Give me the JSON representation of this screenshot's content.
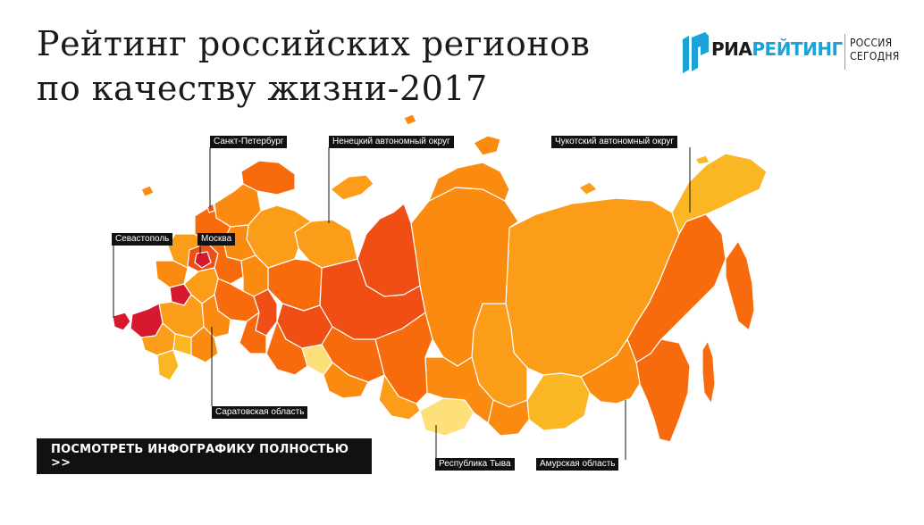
{
  "header": {
    "title_line1": "Рейтинг российских регионов",
    "title_line2": "по качеству жизни-2017"
  },
  "brand": {
    "ria_part1": "РИА",
    "ria_part2": "РЕЙТИНГ",
    "rs_line1": "РОССИЯ",
    "rs_line2": "СЕГОДНЯ",
    "color_dark": "#1a1a1a",
    "color_blue": "#1aa3d9"
  },
  "map": {
    "palette": {
      "highest": "#d7192d",
      "high": "#ef4f14",
      "upper_mid": "#f86b0c",
      "mid": "#fb8a10",
      "lower_mid": "#fc9d1a",
      "low": "#fbb624",
      "lowest": "#fde07a"
    },
    "callouts": {
      "spb": "Санкт-Петербург",
      "nenets": "Ненецкий автономный округ",
      "chukotka": "Чукотский автономный округ",
      "sevastopol": "Севастополь",
      "moscow": "Москва",
      "saratov": "Саратовская область",
      "tyva": "Республика Тыва",
      "amur": "Амурская область"
    }
  },
  "cta": {
    "label": "ПОСМОТРЕТЬ ИНФОГРАФИКУ ПОЛНОСТЬЮ  >>"
  }
}
